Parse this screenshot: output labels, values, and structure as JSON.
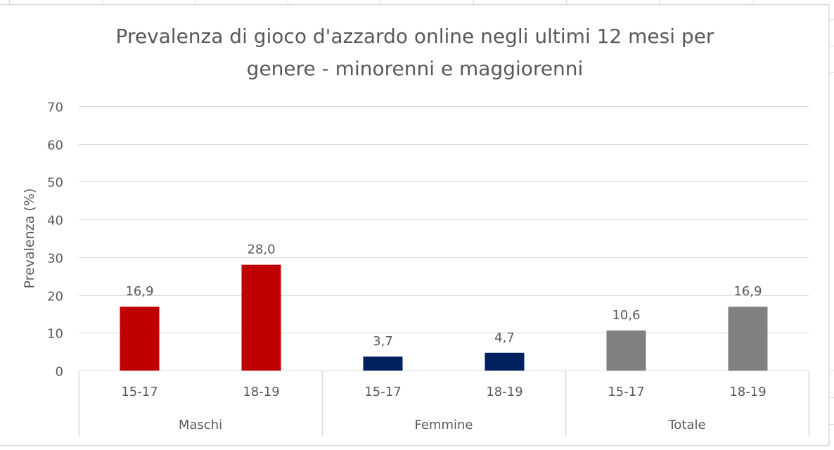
{
  "chart_data": {
    "type": "bar",
    "title": "Prevalenza di gioco d'azzardo online negli ultimi 12 mesi per genere - minorenni e maggiorenni",
    "title_lines": [
      "Prevalenza di gioco d'azzardo online negli ultimi 12 mesi per",
      "genere - minorenni e maggiorenni"
    ],
    "ylabel": "Prevalenza (%)",
    "xlabel": "",
    "ylim": [
      0,
      70
    ],
    "yticks": [
      0,
      10,
      20,
      30,
      40,
      50,
      60,
      70
    ],
    "grid": true,
    "legend": "none",
    "groups": [
      {
        "name": "Maschi",
        "color": "#C00000",
        "categories": [
          "15-17",
          "18-19"
        ],
        "values": [
          16.9,
          28.0
        ],
        "labels": [
          "16,9",
          "28,0"
        ]
      },
      {
        "name": "Femmine",
        "color": "#002060",
        "categories": [
          "15-17",
          "18-19"
        ],
        "values": [
          3.7,
          4.7
        ],
        "labels": [
          "3,7",
          "4,7"
        ]
      },
      {
        "name": "Totale",
        "color": "#808080",
        "categories": [
          "15-17",
          "18-19"
        ],
        "values": [
          10.6,
          16.9
        ],
        "labels": [
          "10,6",
          "16,9"
        ]
      }
    ]
  }
}
